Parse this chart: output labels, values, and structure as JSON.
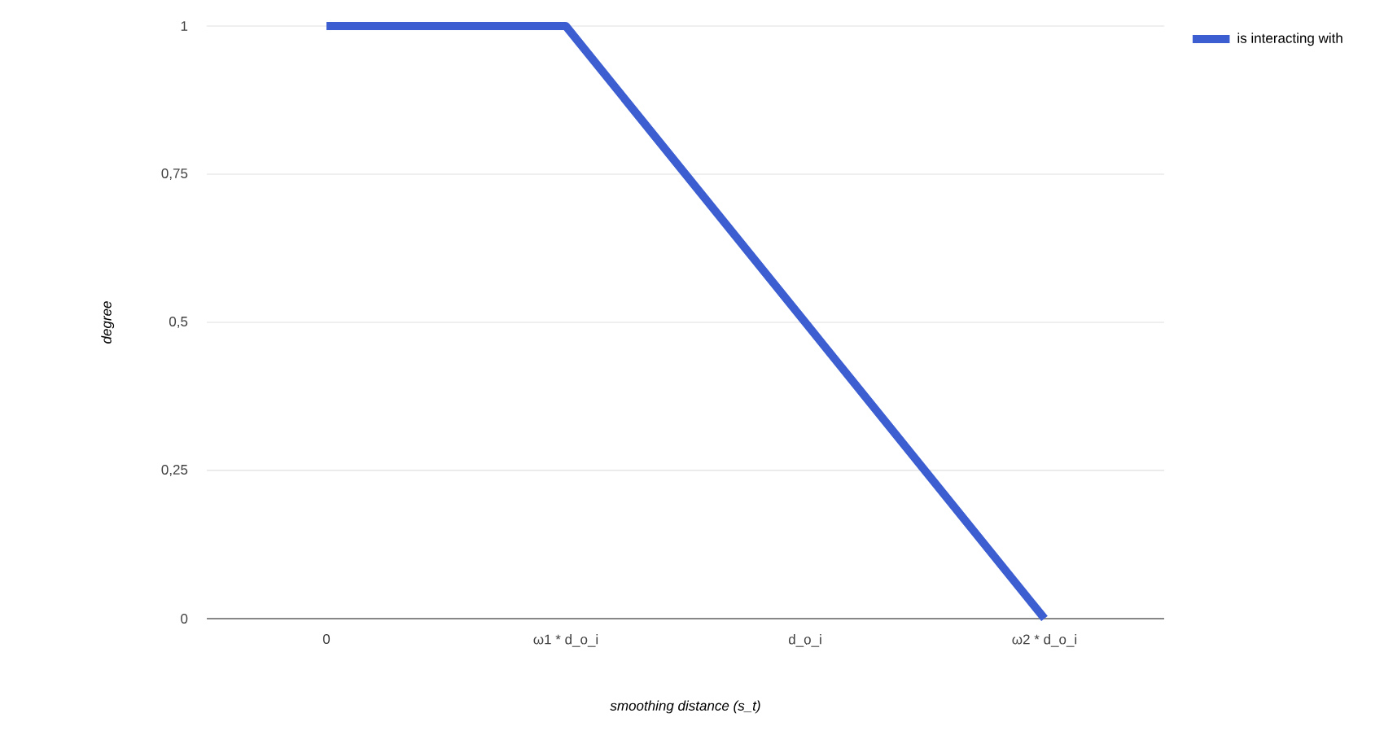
{
  "chart_data": {
    "type": "line",
    "xlabel": "smoothing distance (s_t)",
    "ylabel": "degree",
    "categories": [
      "0",
      "ω1 * d_o_i",
      "d_o_i",
      "ω2 * d_o_i"
    ],
    "series": [
      {
        "name": "is interacting with",
        "color": "#3c5ed1",
        "values": [
          1,
          1,
          0.5,
          0
        ]
      }
    ],
    "ylim": [
      0,
      1
    ],
    "yticks": [
      0,
      {
        "value": 0.25,
        "label": "0,25"
      },
      {
        "value": 0.5,
        "label": "0,5"
      },
      {
        "value": 0.75,
        "label": "0,75"
      },
      1
    ],
    "grid": "y",
    "legend": "right",
    "marker": "none",
    "line_style": "solid"
  }
}
